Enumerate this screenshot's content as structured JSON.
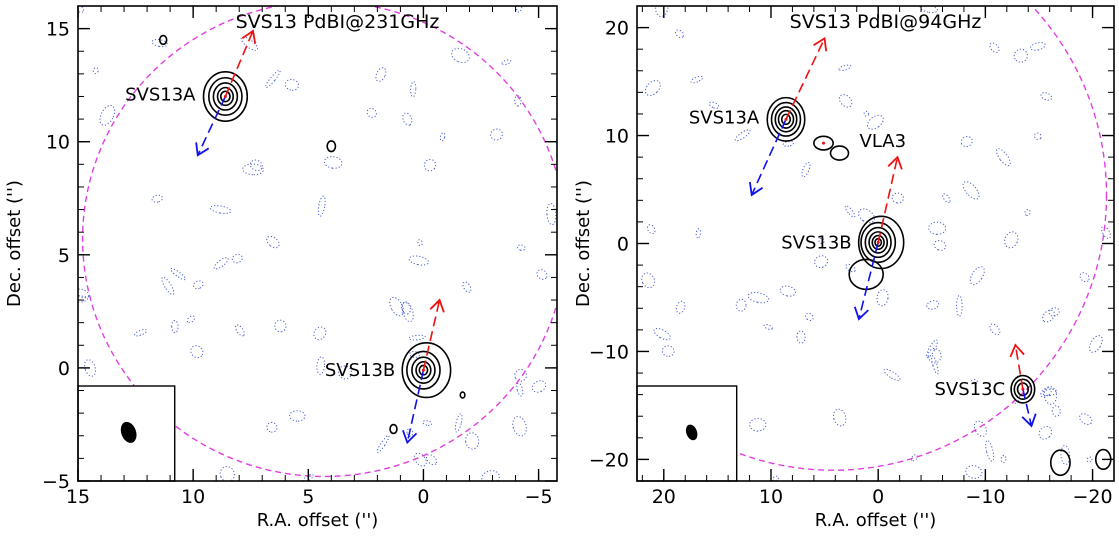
{
  "chart_data": [
    {
      "type": "scatter",
      "title": "SVS13  PdBI@231GHz",
      "xlabel": "R.A. offset ('')",
      "ylabel": "Dec. offset ('')",
      "xlim": [
        15,
        -5.8
      ],
      "ylim": [
        -5,
        16
      ],
      "x_ticks": [
        15,
        10,
        5,
        0,
        -5
      ],
      "x_tick_labels": [
        "15",
        "10",
        "5",
        "0",
        "−5"
      ],
      "y_ticks": [
        -5,
        0,
        5,
        10,
        15
      ],
      "y_tick_labels": [
        "−5",
        "0",
        "5",
        "10",
        "15"
      ],
      "primary_beam": {
        "center": [
          4.3,
          5.7
        ],
        "radius": 10.5
      },
      "beam": {
        "x": 12.8,
        "y": -2.85,
        "major": 0.48,
        "minor": 0.32
      },
      "beam_box_corner": [
        10.8,
        -0.8
      ],
      "sources": [
        {
          "label": "SVS13A",
          "x": 8.6,
          "y": 12.0,
          "sizes": [
            0.95,
            0.72,
            0.52,
            0.34,
            0.2
          ],
          "red_lobe": [
            7.4,
            14.9
          ],
          "blue_lobe": [
            9.8,
            9.4
          ]
        },
        {
          "label": "SVS13B",
          "x": 0.0,
          "y": -0.1,
          "sizes": [
            1.05,
            0.72,
            0.5,
            0.32,
            0.18
          ],
          "red_lobe": [
            -0.7,
            3.0
          ],
          "blue_lobe": [
            0.7,
            -3.3
          ]
        }
      ],
      "extra_contours": [
        {
          "x": 4.0,
          "y": 9.8,
          "r": 0.18
        },
        {
          "x": 11.3,
          "y": 14.5,
          "r": 0.15
        },
        {
          "x": -1.7,
          "y": -1.2,
          "r": 0.1
        },
        {
          "x": 1.3,
          "y": -2.7,
          "r": 0.15
        }
      ],
      "series": [
        {
          "values_desc": "noise"
        }
      ]
    },
    {
      "type": "scatter",
      "title": "SVS13  PdBI@94GHz",
      "xlabel": "R.A. offset ('')",
      "ylabel": "Dec. offset ('')",
      "xlim": [
        22.5,
        -22
      ],
      "ylim": [
        -22,
        22
      ],
      "x_ticks": [
        20,
        10,
        0,
        -10,
        -20
      ],
      "x_tick_labels": [
        "20",
        "10",
        "0",
        "−10",
        "−20"
      ],
      "y_ticks": [
        -20,
        -10,
        0,
        10,
        20
      ],
      "y_tick_labels": [
        "−20",
        "−10",
        "0",
        "10",
        "20"
      ],
      "primary_beam": {
        "center": [
          4.2,
          4.5
        ],
        "radius": 25.5
      },
      "beam": {
        "x": 17.4,
        "y": -17.5,
        "major": 0.75,
        "minor": 0.5
      },
      "beam_box_corner": [
        13.2,
        -13.2
      ],
      "sources": [
        {
          "label": "SVS13A",
          "x": 8.6,
          "y": 11.5,
          "sizes": [
            1.75,
            1.35,
            1.0,
            0.7,
            0.4
          ],
          "red_lobe": [
            5.0,
            19.0
          ],
          "blue_lobe": [
            11.8,
            4.5
          ]
        },
        {
          "label": "VLA3",
          "x": 5.1,
          "y": 9.3,
          "sizes": [
            0.9
          ],
          "red_lobe": null,
          "blue_lobe": null
        },
        {
          "label": "SVS13B",
          "x": 0.0,
          "y": 0.1,
          "sizes": [
            2.1,
            1.6,
            1.2,
            0.85,
            0.55,
            0.3
          ],
          "red_lobe": [
            -1.8,
            8.0
          ],
          "blue_lobe": [
            1.8,
            -7.0
          ]
        },
        {
          "label": "SVS13C",
          "x": -13.5,
          "y": -13.5,
          "sizes": [
            1.1,
            0.8,
            0.5
          ],
          "red_lobe": [
            -12.8,
            -9.4
          ],
          "blue_lobe": [
            -14.3,
            -16.9
          ]
        }
      ],
      "extra_contours": [
        {
          "x": -17.0,
          "y": -20.3,
          "r": 0.9
        },
        {
          "x": -21.0,
          "y": -20.0,
          "r": 0.7
        }
      ]
    }
  ],
  "colors": {
    "contour": "#000000",
    "negative_contour": "#4a5fd0",
    "primary_beam": "#e040e0",
    "red_lobe": "#ee1111",
    "blue_lobe": "#1111ee"
  }
}
